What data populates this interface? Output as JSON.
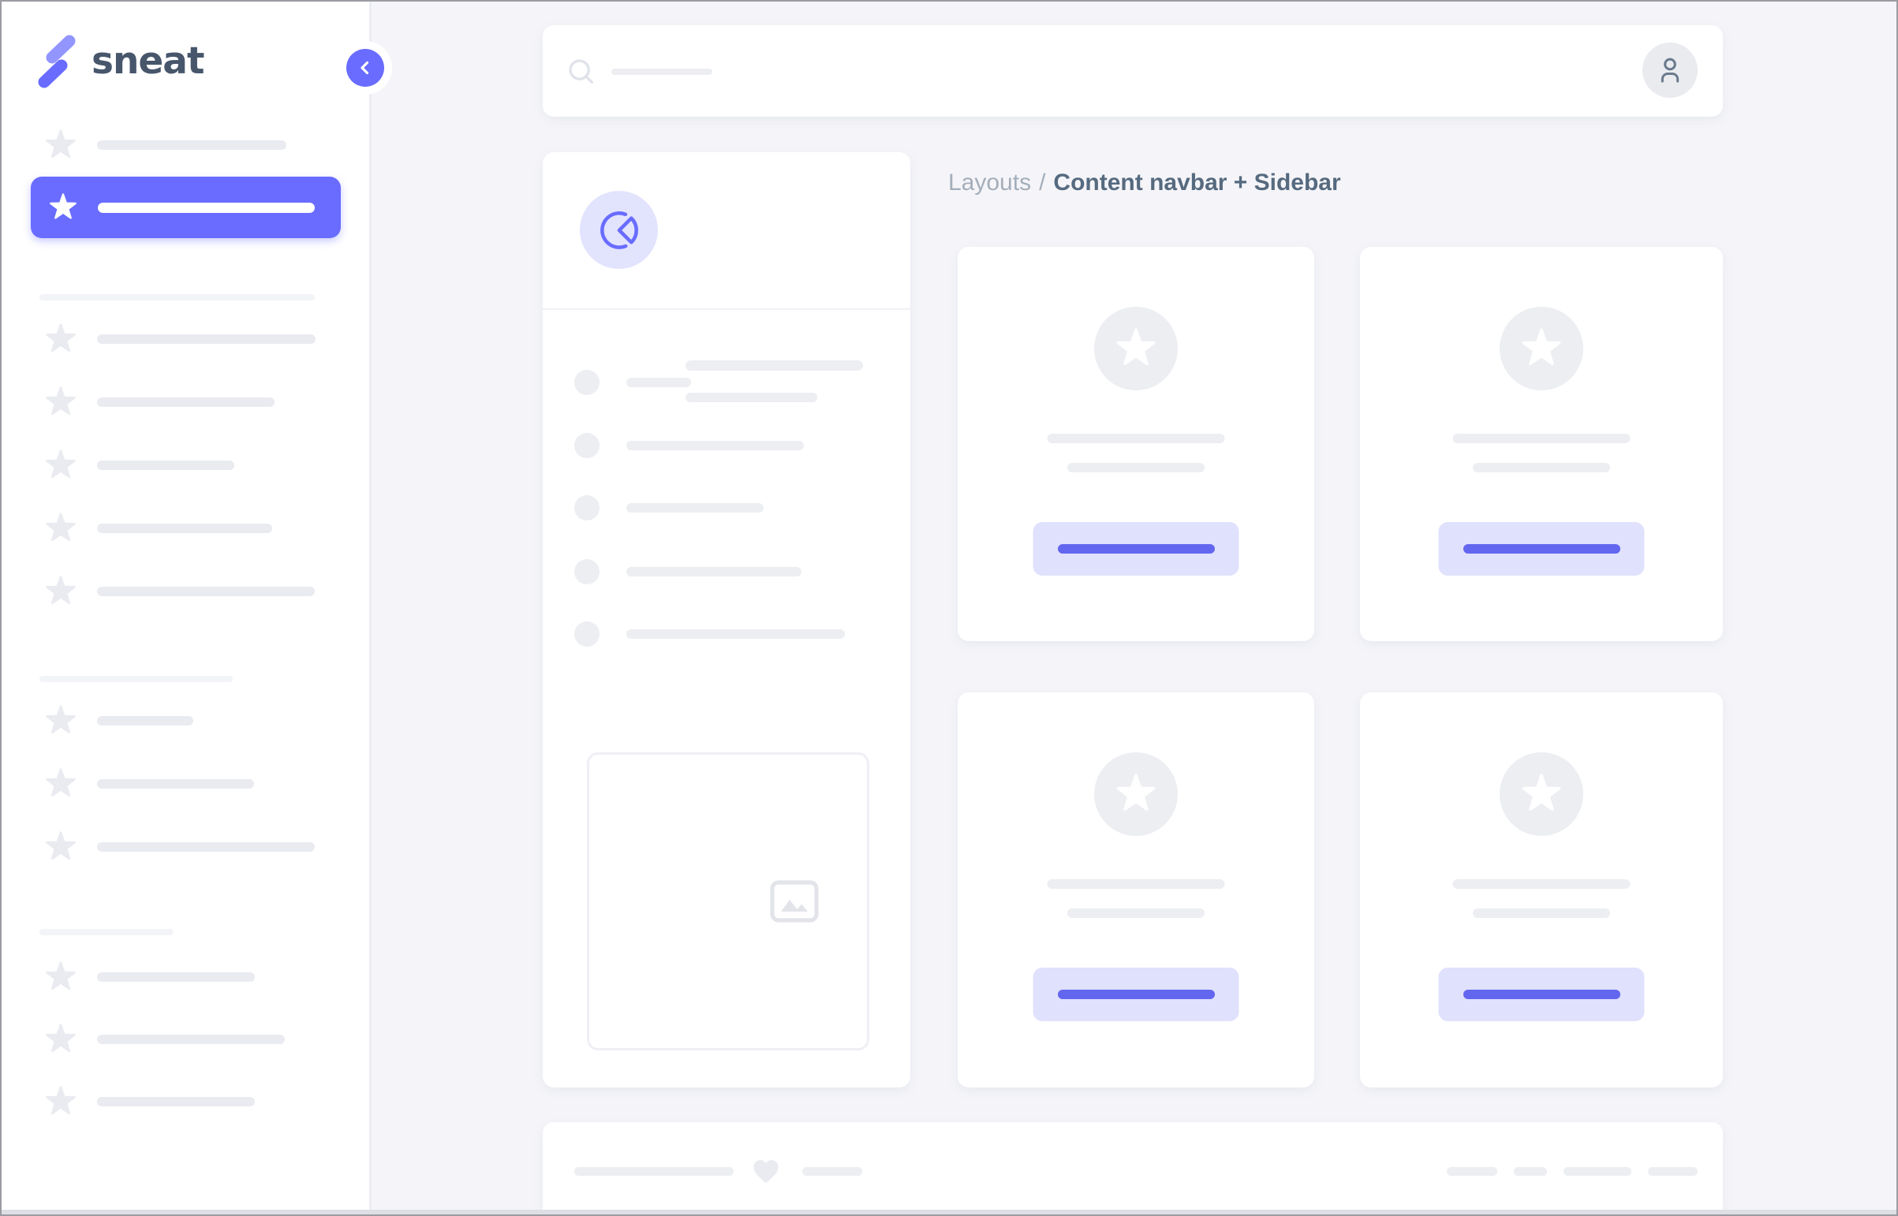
{
  "brand": {
    "name": "sneat"
  },
  "navbar": {
    "search_bar_width": 128
  },
  "breadcrumb": {
    "parent": "Layouts",
    "separator": "/",
    "current": "Content navbar + Sidebar"
  },
  "sidebar": {
    "top_item_bar_width": 240,
    "active_item_bar_width": 275,
    "groups": [
      {
        "divider_width": 349,
        "item_bar_widths": [
          277,
          225,
          174,
          222,
          276
        ]
      },
      {
        "divider_width": 245,
        "item_bar_widths": [
          122,
          199,
          276
        ]
      },
      {
        "divider_width": 170,
        "item_bar_widths": [
          200,
          238,
          200
        ]
      }
    ]
  },
  "demo_card": {
    "header_bar_widths": [
      225,
      167
    ],
    "list_bar_widths": [
      82,
      225,
      174,
      222,
      277
    ]
  },
  "cards": [
    {
      "bar_widths": [
        225,
        174
      ],
      "button_bar_width": 199
    },
    {
      "bar_widths": [
        225,
        174
      ],
      "button_bar_width": 199
    },
    {
      "bar_widths": [
        225,
        174
      ],
      "button_bar_width": 199
    },
    {
      "bar_widths": [
        225,
        174
      ],
      "button_bar_width": 199
    }
  ],
  "footer": {
    "left_bar_widths": [
      202,
      76
    ],
    "right_bar_widths": [
      64,
      42,
      86,
      63
    ]
  },
  "icons": {
    "logo": "sneat-s-logo",
    "collapse": "chevron-left",
    "search": "magnifier",
    "user": "person",
    "demo_avatar": "pie-chart",
    "menu_bullet": "star",
    "card_badge": "star",
    "footer_like": "heart",
    "image_placeholder": "image-mountains"
  },
  "colors": {
    "primary": "#696cff",
    "primary_soft": "#e0e1fc",
    "primary_bar": "#6366ef",
    "bar_gray": "#eceef1",
    "sidebar_bar_gray": "#e9ebf0",
    "divider": "#f3f4f8",
    "background": "#f5f5f9",
    "card": "#ffffff",
    "breadcrumb_light": "#a4aeba",
    "breadcrumb_dark": "#566a7f",
    "logo_text": "#47566b"
  }
}
